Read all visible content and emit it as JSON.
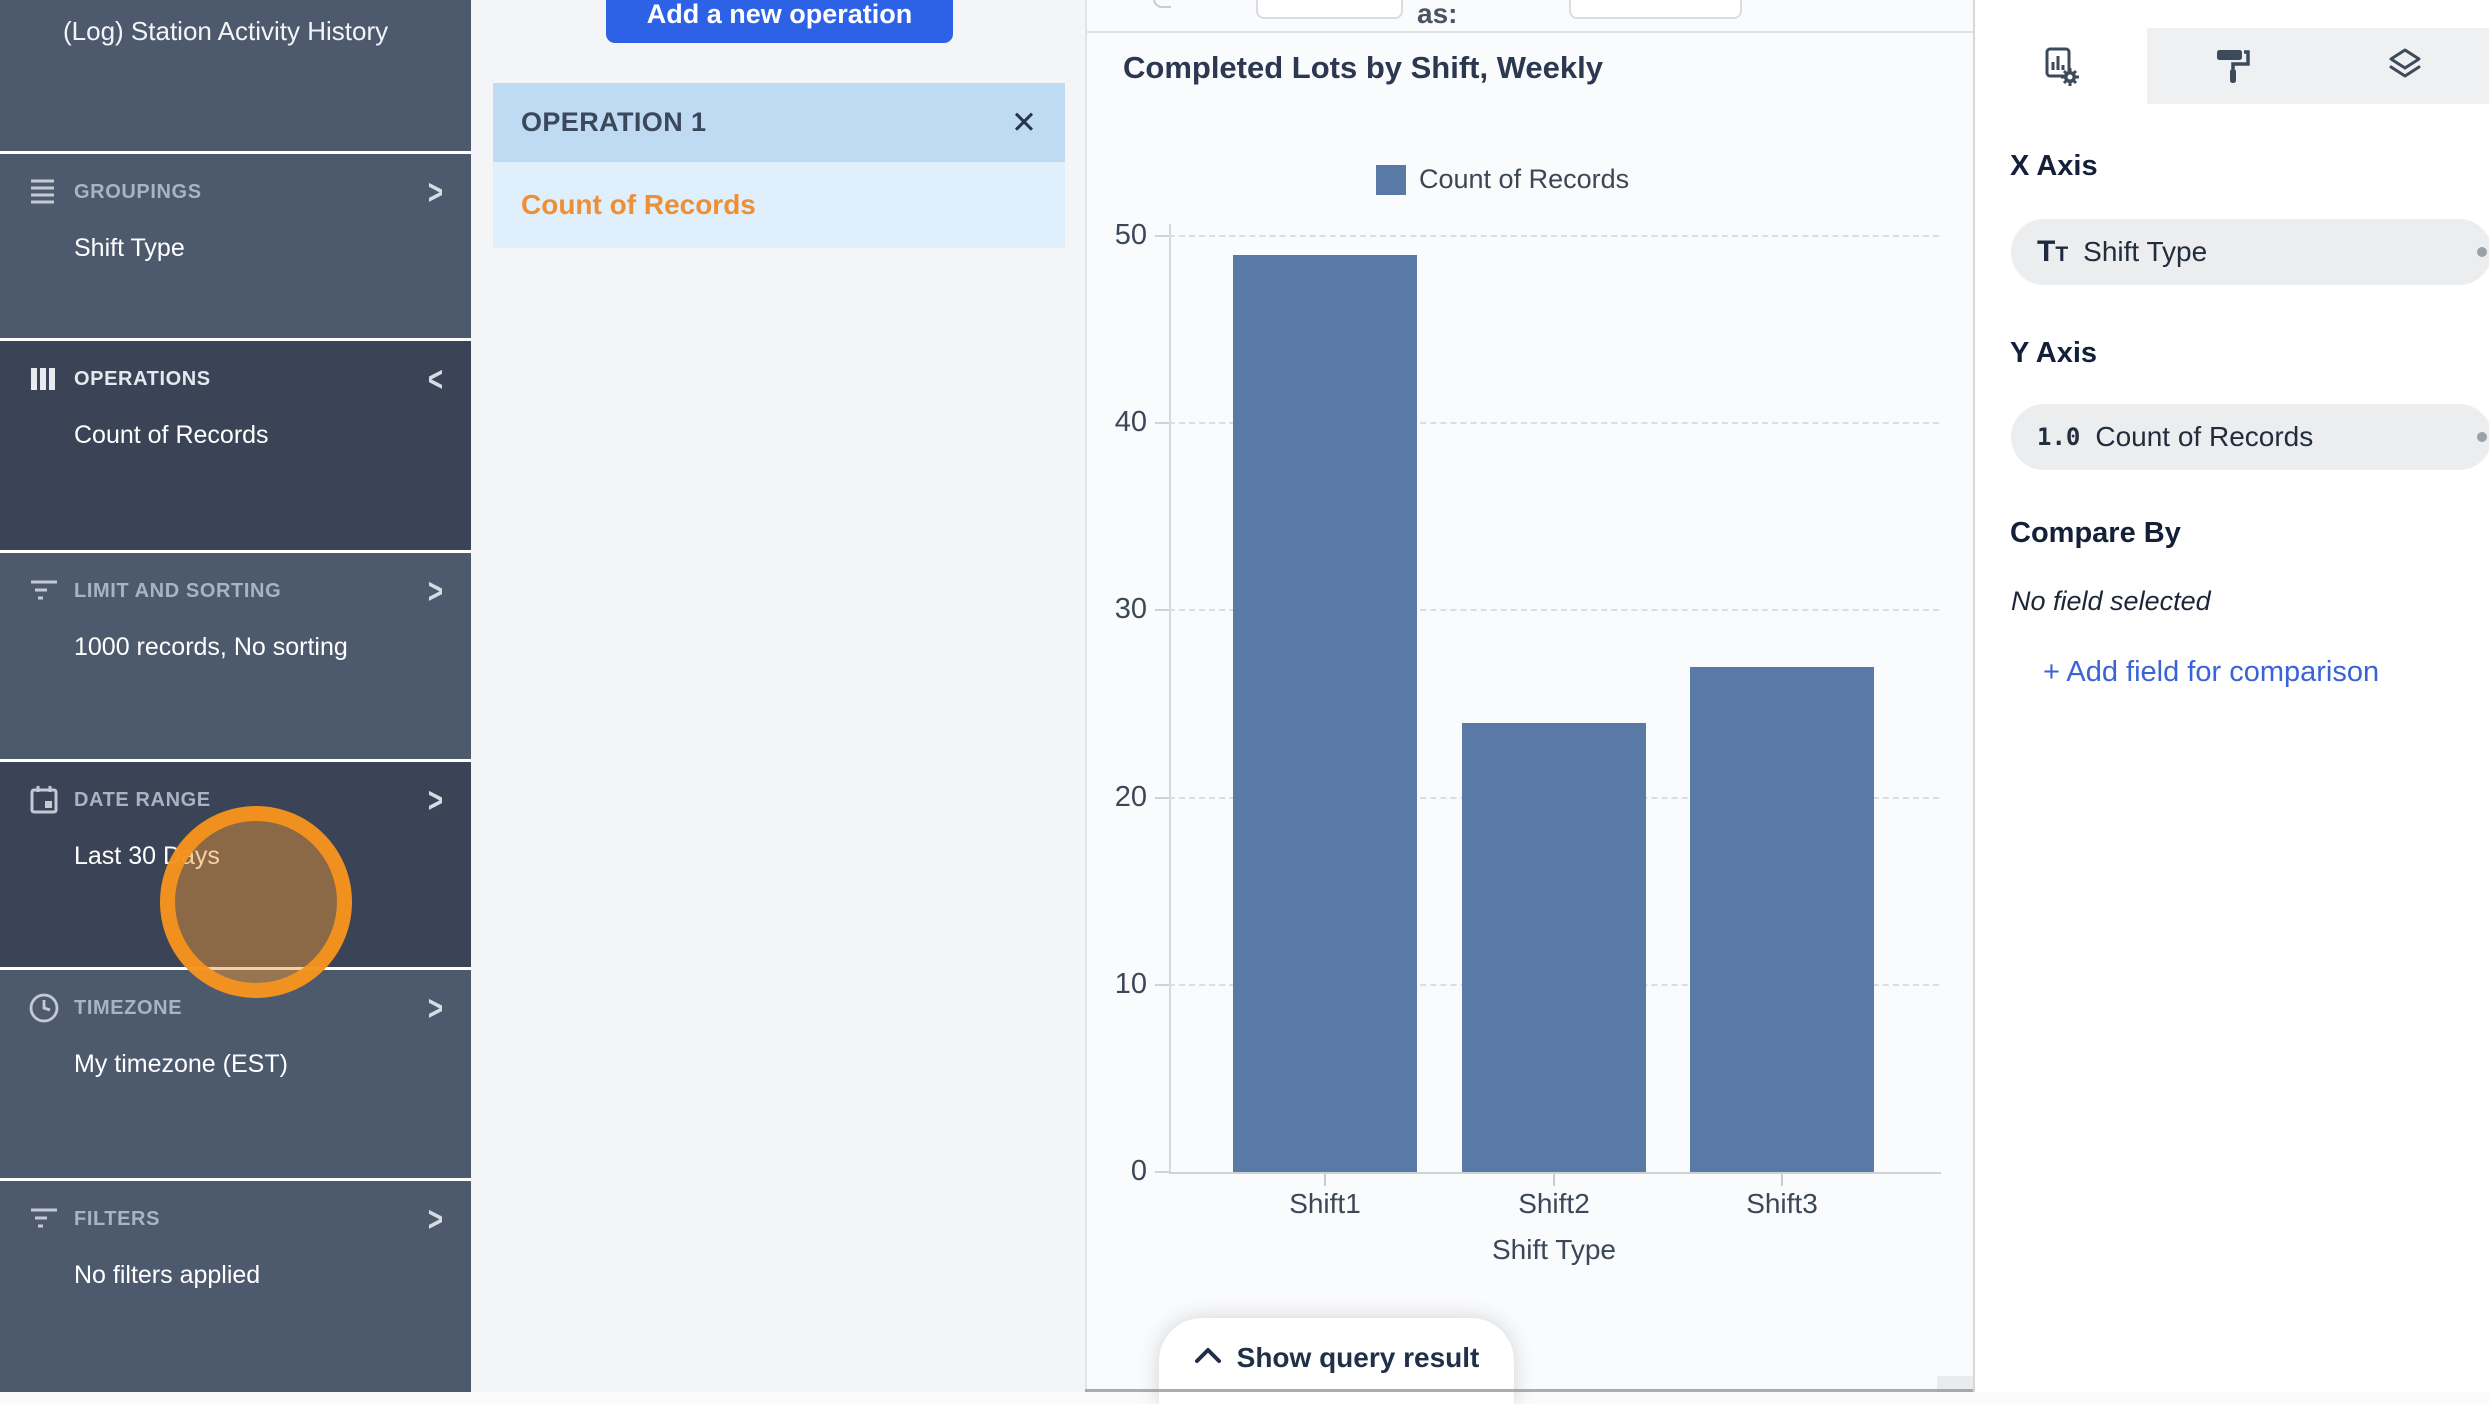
{
  "sidebar": {
    "dataset_title": "(Log) Station Activity History",
    "sections": [
      {
        "label": "GROUPINGS",
        "value": "Shift Type",
        "icon": "rows-icon",
        "chevron": ">",
        "active": false,
        "bright": false
      },
      {
        "label": "OPERATIONS",
        "value": "Count of Records",
        "icon": "columns-icon",
        "chevron": "<",
        "active": true,
        "bright": true
      },
      {
        "label": "LIMIT AND SORTING",
        "value": "1000 records, No sorting",
        "icon": "sort-lines-icon",
        "chevron": ">",
        "active": false,
        "bright": false
      },
      {
        "label": "DATE RANGE",
        "value": "Last 30 Days",
        "icon": "calendar-icon",
        "chevron": ">",
        "active": true,
        "bright": false
      },
      {
        "label": "TIMEZONE",
        "value": "My timezone (EST)",
        "icon": "clock-icon",
        "chevron": ">",
        "active": false,
        "bright": false
      },
      {
        "label": "FILTERS",
        "value": "No filters applied",
        "icon": "filter-lines-icon",
        "chevron": ">",
        "active": false,
        "bright": false
      }
    ]
  },
  "operations_panel": {
    "add_button_label": "Add a new operation",
    "operation_title": "OPERATION 1",
    "operation_value": "Count of Records",
    "close_glyph": "✕"
  },
  "query_toolbar": {
    "as_label": "as:"
  },
  "chart_data": {
    "type": "bar",
    "title": "Completed Lots by Shift, Weekly",
    "categories": [
      "Shift1",
      "Shift2",
      "Shift3"
    ],
    "values": [
      49,
      24,
      27
    ],
    "series_name": "Count of Records",
    "xlabel": "Shift Type",
    "ylabel": "",
    "ylim": [
      0,
      50
    ],
    "yticks": [
      0,
      10,
      20,
      30,
      40,
      50
    ],
    "grid": "dashed-horizontal",
    "legend_position": "top-center",
    "bar_color": "#5a7aa6"
  },
  "footer": {
    "show_query_label": "Show query result"
  },
  "inspector": {
    "x_axis": {
      "heading": "X Axis",
      "field": "Shift Type"
    },
    "y_axis": {
      "heading": "Y Axis",
      "field": "Count of Records",
      "type_glyph": "1.0"
    },
    "compare_by": {
      "heading": "Compare By",
      "empty_text": "No field selected",
      "add_label": "+ Add field for comparison"
    }
  },
  "colors": {
    "sidebar_bg": "#4d5a6e",
    "sidebar_active_bg": "#3a4456",
    "accent_blue": "#2d62e7",
    "operation_header_bg": "#bedbf3",
    "operation_body_bg": "#dfeffb",
    "operation_value_orange": "#ee8f35",
    "bar_blue": "#5a7aa6",
    "click_highlight_orange": "#f7941e",
    "link_blue": "#3a63d6"
  }
}
